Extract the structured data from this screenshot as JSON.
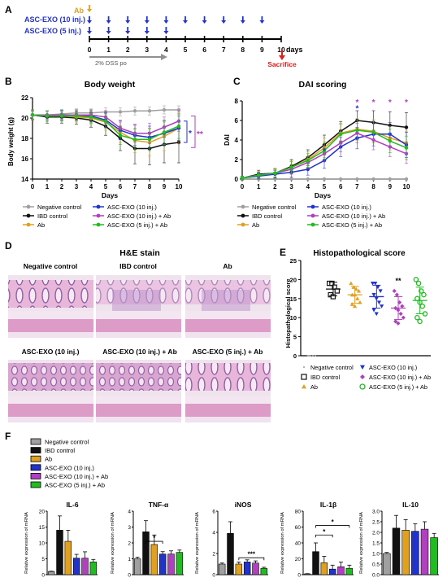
{
  "colors": {
    "neg": "#a0a0a0",
    "ibd": "#111111",
    "ab": "#e0a020",
    "exo10": "#2233cc",
    "exo10ab": "#b040c0",
    "exo5ab": "#22bb22",
    "tissue_bg": "#efe3ee",
    "tissue_pink": "#d98fc0",
    "tissue_purple": "#8a5aa6",
    "dss": "#909090",
    "sacrifice": "#e02020"
  },
  "panelA": {
    "letter": "A",
    "ab_label": "Ab",
    "row1_label": "ASC-EXO (10 inj.)",
    "row2_label": "ASC-EXO (5 inj.)",
    "days": [
      "0",
      "1",
      "2",
      "3",
      "4",
      "5",
      "6",
      "7",
      "8",
      "9",
      "10"
    ],
    "days_label": "days",
    "dss_label": "2%  DSS po",
    "sacrifice_label": "Sacrifice",
    "row1_injection_days": [
      0,
      1,
      2,
      3,
      4,
      5,
      6,
      7,
      8,
      9
    ],
    "row2_injection_days": [
      0,
      1,
      2,
      3,
      4
    ]
  },
  "legend": {
    "neg": "Negative control",
    "ibd": "IBD control",
    "ab": "Ab",
    "exo10": "ASC-EXO (10 inj.)",
    "exo10ab": "ASC-EXO (10 inj.) + Ab",
    "exo5ab": "ASC-EXO (5 inj.) + Ab"
  },
  "panelD": {
    "letter": "D",
    "title": "H&E stain",
    "captions": [
      "Negative control",
      "IBD control",
      "Ab",
      "ASC-EXO (10 inj.)",
      "ASC-EXO (10 inj.) + Ab",
      "ASC-EXO (5 inj.) + Ab"
    ]
  },
  "panelF": {
    "letter": "F",
    "ylabel": "Relative expression of mRNA"
  },
  "chart_data": [
    {
      "id": "B",
      "letter": "B",
      "type": "line",
      "title": "Body weight",
      "xlabel": "Days",
      "ylabel": "Body weight (g)",
      "x": [
        0,
        1,
        2,
        3,
        4,
        5,
        6,
        7,
        8,
        9,
        10
      ],
      "xlim": [
        0,
        10
      ],
      "ylim": [
        14,
        22
      ],
      "yticks": [
        14,
        16,
        18,
        20,
        22
      ],
      "annotations": [
        "*",
        "**"
      ],
      "series": [
        {
          "key": "neg",
          "name": "Negative control",
          "values": [
            20.3,
            20.3,
            20.4,
            20.5,
            20.5,
            20.6,
            20.6,
            20.7,
            20.7,
            20.8,
            20.8
          ],
          "err": [
            0.4,
            0.4,
            0.4,
            0.4,
            0.4,
            0.4,
            0.4,
            0.4,
            0.4,
            0.4,
            0.4
          ]
        },
        {
          "key": "ibd",
          "name": "IBD control",
          "values": [
            20.3,
            20.1,
            20.1,
            20.0,
            19.8,
            19.2,
            18.0,
            17.0,
            17.0,
            17.4,
            17.6
          ],
          "err": [
            0.5,
            0.6,
            0.6,
            0.6,
            0.7,
            0.9,
            1.2,
            1.5,
            1.6,
            1.8,
            2.0
          ]
        },
        {
          "key": "ab",
          "name": "Ab",
          "values": [
            20.3,
            20.2,
            20.2,
            20.1,
            20.0,
            19.6,
            18.6,
            17.8,
            17.6,
            18.2,
            19.0
          ],
          "err": [
            0.5,
            0.5,
            0.5,
            0.5,
            0.6,
            0.8,
            1.0,
            1.2,
            1.3,
            1.4,
            1.5
          ]
        },
        {
          "key": "exo10",
          "name": "ASC-EXO (10 inj.)",
          "values": [
            20.3,
            20.2,
            20.3,
            20.3,
            20.2,
            19.8,
            18.8,
            18.3,
            18.1,
            18.5,
            19.0
          ],
          "err": [
            0.4,
            0.5,
            0.5,
            0.5,
            0.6,
            0.7,
            0.9,
            1.0,
            1.1,
            1.2,
            1.2
          ]
        },
        {
          "key": "exo10ab",
          "name": "ASC-EXO (10 inj.) + Ab",
          "values": [
            20.3,
            20.3,
            20.3,
            20.3,
            20.3,
            20.1,
            19.0,
            18.5,
            18.5,
            19.1,
            19.7
          ],
          "err": [
            0.4,
            0.4,
            0.4,
            0.5,
            0.5,
            0.6,
            0.8,
            0.9,
            1.0,
            1.0,
            1.0
          ]
        },
        {
          "key": "exo5ab",
          "name": "ASC-EXO (5 inj.) + Ab",
          "values": [
            20.3,
            20.2,
            20.2,
            20.2,
            20.1,
            19.7,
            18.3,
            17.9,
            17.9,
            18.6,
            19.2
          ],
          "err": [
            0.4,
            0.5,
            0.5,
            0.5,
            0.6,
            0.7,
            0.9,
            1.0,
            1.1,
            1.2,
            1.2
          ]
        }
      ]
    },
    {
      "id": "C",
      "letter": "C",
      "type": "line",
      "title": "DAI scoring",
      "xlabel": "Days",
      "ylabel": "DAI",
      "x": [
        0,
        1,
        2,
        3,
        4,
        5,
        6,
        7,
        8,
        9,
        10
      ],
      "xlim": [
        0,
        10
      ],
      "ylim": [
        0,
        8
      ],
      "yticks": [
        0,
        2,
        4,
        6,
        8
      ],
      "annotations": [
        {
          "day": 5,
          "text": "*",
          "key": "exo10"
        },
        {
          "day": 7,
          "text": "*",
          "key": "exo10ab"
        },
        {
          "day": 7,
          "text": "*",
          "key": "exo10"
        },
        {
          "day": 8,
          "text": "*",
          "key": "exo10ab"
        },
        {
          "day": 9,
          "text": "*",
          "key": "exo10ab"
        },
        {
          "day": 10,
          "text": "*",
          "key": "exo10ab"
        }
      ],
      "series": [
        {
          "key": "neg",
          "name": "Negative control",
          "values": [
            0,
            0,
            0,
            0,
            0,
            0,
            0,
            0,
            0,
            0,
            0
          ],
          "err": [
            0,
            0,
            0,
            0,
            0,
            0,
            0,
            0,
            0,
            0,
            0
          ]
        },
        {
          "key": "ibd",
          "name": "IBD control",
          "values": [
            0.1,
            0.5,
            0.6,
            1.3,
            2.2,
            3.5,
            4.9,
            6.0,
            5.8,
            5.5,
            5.3
          ],
          "err": [
            0.2,
            0.4,
            0.5,
            0.7,
            0.8,
            1.0,
            1.0,
            1.0,
            1.2,
            1.4,
            1.5
          ]
        },
        {
          "key": "ab",
          "name": "Ab",
          "values": [
            0.1,
            0.4,
            0.6,
            1.2,
            2.0,
            3.2,
            4.7,
            5.1,
            4.9,
            4.2,
            3.7
          ],
          "err": [
            0.2,
            0.4,
            0.5,
            0.7,
            0.8,
            1.0,
            1.0,
            1.1,
            1.2,
            1.2,
            1.2
          ]
        },
        {
          "key": "exo10",
          "name": "ASC-EXO (10 inj.)",
          "values": [
            0.1,
            0.3,
            0.5,
            0.7,
            1.0,
            1.9,
            3.3,
            4.2,
            4.6,
            4.6,
            3.5
          ],
          "err": [
            0.2,
            0.3,
            0.4,
            0.5,
            0.6,
            0.8,
            1.0,
            1.1,
            1.2,
            1.2,
            1.3
          ]
        },
        {
          "key": "exo10ab",
          "name": "ASC-EXO (10 inj.) + Ab",
          "values": [
            0.1,
            0.4,
            0.6,
            1.0,
            1.7,
            2.6,
            3.7,
            4.7,
            4.0,
            3.3,
            2.6
          ],
          "err": [
            0.2,
            0.3,
            0.4,
            0.5,
            0.6,
            0.8,
            0.9,
            1.0,
            1.0,
            1.0,
            1.0
          ]
        },
        {
          "key": "exo5ab",
          "name": "ASC-EXO (5 inj.) + Ab",
          "values": [
            0.1,
            0.4,
            0.6,
            1.2,
            1.9,
            2.9,
            4.6,
            5.0,
            4.8,
            3.9,
            3.2
          ],
          "err": [
            0.2,
            0.3,
            0.4,
            0.6,
            0.7,
            0.9,
            1.0,
            1.0,
            1.1,
            1.2,
            1.2
          ]
        }
      ]
    },
    {
      "id": "E",
      "letter": "E",
      "type": "scatter",
      "title": "Histopathological score",
      "ylabel": "Histopathological score",
      "ylim": [
        0,
        25
      ],
      "yticks": [
        0,
        5,
        10,
        15,
        20,
        25
      ],
      "annotations": [
        {
          "key": "exo10ab",
          "text": "**"
        }
      ],
      "groups": [
        {
          "key": "neg",
          "name": "Negative control",
          "marker": "dot",
          "mean": 0,
          "sd": 0,
          "points": [
            0,
            0,
            0,
            0,
            0
          ]
        },
        {
          "key": "ibd",
          "name": "IBD control",
          "marker": "square",
          "mean": 17.5,
          "sd": 1.8,
          "points": [
            19,
            19,
            18,
            17,
            16,
            15.5
          ]
        },
        {
          "key": "ab",
          "name": "Ab",
          "marker": "triangle-up",
          "mean": 16,
          "sd": 2.2,
          "points": [
            19,
            18,
            17.5,
            17,
            16,
            16,
            15,
            14,
            13.5,
            13
          ]
        },
        {
          "key": "exo10",
          "name": "ASC-EXO (10 inj.)",
          "marker": "triangle-down",
          "mean": 15.5,
          "sd": 3,
          "points": [
            19,
            19,
            18,
            17,
            16,
            15,
            14,
            13,
            12,
            11
          ]
        },
        {
          "key": "exo10ab",
          "name": "ASC-EXO (10 inj.) + Ab",
          "marker": "diamond",
          "mean": 12.5,
          "sd": 3,
          "points": [
            17,
            16,
            14,
            13,
            12.5,
            12,
            11,
            10,
            9,
            8.5
          ]
        },
        {
          "key": "exo5ab",
          "name": "ASC-EXO (5 inj.) + Ab",
          "marker": "circle",
          "mean": 14.5,
          "sd": 3.5,
          "points": [
            20,
            19,
            17,
            16,
            15,
            14,
            13,
            11,
            10,
            9
          ]
        }
      ]
    },
    {
      "id": "F1",
      "type": "bar",
      "title": "IL-6",
      "ylabel": "Relative expression of mRNA",
      "ylim": [
        0,
        20
      ],
      "yticks": [
        0,
        5,
        10,
        15,
        20
      ],
      "categories": [
        "Negative control",
        "IBD control",
        "Ab",
        "ASC-EXO (10 inj.)",
        "ASC-EXO (10 inj.) + Ab",
        "ASC-EXO (5 inj.) + Ab"
      ],
      "values": [
        1.0,
        14.0,
        10.5,
        5.2,
        5.2,
        4.0
      ],
      "err": [
        0.1,
        4.5,
        3.5,
        1.2,
        2.0,
        0.8
      ],
      "brackets": []
    },
    {
      "id": "F2",
      "type": "bar",
      "title": "TNF-α",
      "ylabel": "Relative expression of mRNA",
      "ylim": [
        0,
        4
      ],
      "yticks": [
        0,
        1,
        2,
        3,
        4
      ],
      "categories": [
        "Negative control",
        "IBD control",
        "Ab",
        "ASC-EXO (10 inj.)",
        "ASC-EXO (10 inj.) + Ab",
        "ASC-EXO (5 inj.) + Ab"
      ],
      "values": [
        1.0,
        2.7,
        1.9,
        1.3,
        1.3,
        1.4
      ],
      "err": [
        0.1,
        0.7,
        0.6,
        0.15,
        0.2,
        0.15
      ],
      "brackets": [
        {
          "from": 1,
          "to": 3,
          "text": "*"
        }
      ]
    },
    {
      "id": "F3",
      "type": "bar",
      "title": "iNOS",
      "ylabel": "Relative expression of mRNA",
      "ylim": [
        0,
        6
      ],
      "yticks": [
        0,
        2,
        4,
        6
      ],
      "categories": [
        "Negative control",
        "IBD control",
        "Ab",
        "ASC-EXO (10 inj.)",
        "ASC-EXO (10 inj.) + Ab",
        "ASC-EXO (5 inj.) + Ab"
      ],
      "values": [
        1.0,
        3.9,
        1.0,
        1.2,
        1.1,
        0.6
      ],
      "err": [
        0.1,
        1.1,
        0.2,
        0.2,
        0.2,
        0.1
      ],
      "brackets": [
        {
          "from": 2,
          "to": 5,
          "text": "***"
        }
      ]
    },
    {
      "id": "F4",
      "type": "bar",
      "title": "IL-1β",
      "ylabel": "Relative expression of mRNA",
      "ylim": [
        0,
        80
      ],
      "yticks": [
        0,
        20,
        40,
        60,
        80
      ],
      "categories": [
        "Negative control",
        "IBD control",
        "Ab",
        "ASC-EXO (10 inj.)",
        "ASC-EXO (10 inj.) + Ab",
        "ASC-EXO (5 inj.) + Ab"
      ],
      "values": [
        1.0,
        29.0,
        15.0,
        7.0,
        10.0,
        8.0
      ],
      "err": [
        0.3,
        11.0,
        8.0,
        5.0,
        6.0,
        4.0
      ],
      "brackets": [
        {
          "from": 1,
          "to": 3,
          "text": "*"
        },
        {
          "from": 1,
          "to": 5,
          "text": "*"
        }
      ]
    },
    {
      "id": "F5",
      "type": "bar",
      "title": "IL-10",
      "ylabel": "Relative expression of mRNA",
      "ylim": [
        0,
        3
      ],
      "yticks": [
        0.0,
        0.5,
        1.0,
        1.5,
        2.0,
        2.5,
        3.0
      ],
      "categories": [
        "Negative control",
        "IBD control",
        "Ab",
        "ASC-EXO (10 inj.)",
        "ASC-EXO (10 inj.) + Ab",
        "ASC-EXO (5 inj.) + Ab"
      ],
      "values": [
        1.0,
        2.2,
        2.1,
        2.05,
        2.15,
        1.75
      ],
      "err": [
        0.05,
        0.6,
        0.5,
        0.35,
        0.35,
        0.2
      ],
      "brackets": []
    }
  ]
}
